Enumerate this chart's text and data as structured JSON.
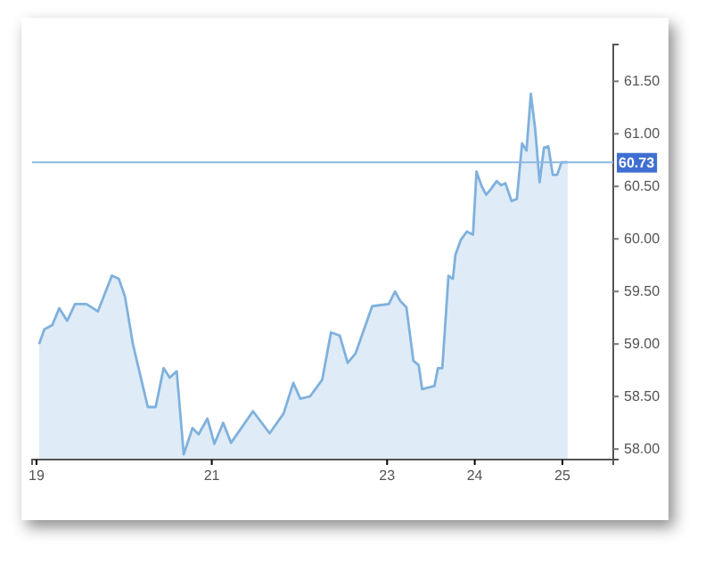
{
  "chart_data": {
    "type": "area",
    "x": [
      19.03,
      19.09,
      19.18,
      19.26,
      19.35,
      19.44,
      19.57,
      19.7,
      19.86,
      19.94,
      20.01,
      20.1,
      20.27,
      20.36,
      20.45,
      20.52,
      20.6,
      20.68,
      20.78,
      20.85,
      20.95,
      21.03,
      21.13,
      21.22,
      21.47,
      21.66,
      21.82,
      21.93,
      22.01,
      22.12,
      22.26,
      22.36,
      22.46,
      22.55,
      22.64,
      22.83,
      23.02,
      23.09,
      23.15,
      23.22,
      23.3,
      23.36,
      23.4,
      23.54,
      23.58,
      23.63,
      23.7,
      23.75,
      23.78,
      23.84,
      23.91,
      23.98,
      24.02,
      24.08,
      24.13,
      24.18,
      24.25,
      24.3,
      24.35,
      24.42,
      24.48,
      24.54,
      24.59,
      24.64,
      24.69,
      24.74,
      24.79,
      24.84,
      24.89,
      24.94,
      24.99,
      25.06
    ],
    "series": [
      {
        "color": "#7fb1dd",
        "values": [
          59.0,
          59.14,
          59.18,
          59.34,
          59.22,
          59.38,
          59.38,
          59.31,
          59.65,
          59.62,
          59.45,
          59.0,
          58.4,
          58.4,
          58.77,
          58.68,
          58.74,
          57.95,
          58.2,
          58.14,
          58.29,
          58.05,
          58.25,
          58.06,
          58.36,
          58.15,
          58.34,
          58.63,
          58.48,
          58.5,
          58.66,
          59.11,
          59.08,
          58.82,
          58.91,
          59.36,
          59.38,
          59.5,
          59.41,
          59.35,
          58.84,
          58.8,
          58.57,
          58.6,
          58.77,
          58.77,
          59.65,
          59.62,
          59.85,
          59.99,
          60.07,
          60.04,
          60.64,
          60.5,
          60.42,
          60.47,
          60.55,
          60.51,
          60.53,
          60.36,
          60.38,
          60.91,
          60.84,
          61.38,
          61.04,
          60.54,
          60.87,
          60.88,
          60.61,
          60.61,
          60.73,
          60.73
        ]
      }
    ],
    "xlim": [
      18.95,
      25.58
    ],
    "xticks": [
      19,
      21,
      23,
      24,
      25
    ],
    "ylim": [
      57.9,
      61.85
    ],
    "yticks": [
      {
        "value": 58,
        "label": "58.00"
      },
      {
        "value": 58.5,
        "label": "58.50"
      },
      {
        "value": 59,
        "label": "59.00"
      },
      {
        "value": 59.5,
        "label": "59.50"
      },
      {
        "value": 60,
        "label": "60.00"
      },
      {
        "value": 60.5,
        "label": "60.50"
      },
      {
        "value": 61,
        "label": "61.00"
      },
      {
        "value": 61.5,
        "label": "61.50"
      }
    ],
    "ref_lines": [
      {
        "axis": "y",
        "value": 60.73,
        "label": "60.73",
        "color": "#8db8e0"
      }
    ]
  }
}
